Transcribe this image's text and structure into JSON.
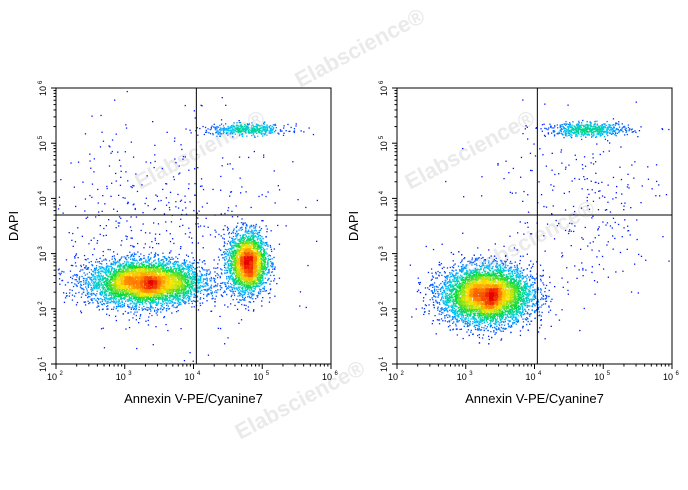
{
  "watermark": "Elabscience®",
  "chart_data": [
    {
      "type": "scatter",
      "panel": "left",
      "xlabel": "Annexin V-PE/Cyanine7",
      "ylabel": "DAPI",
      "xscale": "log",
      "yscale": "log",
      "xlim": [
        100,
        1000000
      ],
      "ylim": [
        10,
        1000000
      ],
      "x_ticks": [
        {
          "base": "10",
          "exp": "2"
        },
        {
          "base": "10",
          "exp": "3"
        },
        {
          "base": "10",
          "exp": "4"
        },
        {
          "base": "10",
          "exp": "5"
        },
        {
          "base": "10",
          "exp": "6"
        }
      ],
      "y_ticks": [
        {
          "base": "10",
          "exp": "1"
        },
        {
          "base": "10",
          "exp": "2"
        },
        {
          "base": "10",
          "exp": "3"
        },
        {
          "base": "10",
          "exp": "4"
        },
        {
          "base": "10",
          "exp": "5"
        },
        {
          "base": "10",
          "exp": "6"
        }
      ],
      "quadrant_gate": {
        "x": 11000,
        "y": 5000
      },
      "grid": false,
      "color_scale": "density (blue → green → yellow → red)",
      "populations": [
        {
          "x_center": 2000,
          "y_center": 300,
          "x_spread_log": 0.42,
          "y_spread_log": 0.2,
          "count": 5200,
          "density_peak": "red"
        },
        {
          "x_center": 60000,
          "y_center": 700,
          "x_spread_log": 0.14,
          "y_spread_log": 0.28,
          "count": 2800,
          "density_peak": "red"
        },
        {
          "x_center": 60000,
          "y_center": 180000,
          "x_spread_log": 0.3,
          "y_spread_log": 0.05,
          "count": 450,
          "density_peak": "blue"
        },
        {
          "x_center": 3000,
          "y_center": 3000,
          "x_spread_log": 0.9,
          "y_spread_log": 1.0,
          "count": 500,
          "density_peak": "blue"
        }
      ]
    },
    {
      "type": "scatter",
      "panel": "right",
      "xlabel": "Annexin V-PE/Cyanine7",
      "ylabel": "DAPI",
      "xscale": "log",
      "yscale": "log",
      "xlim": [
        100,
        1000000
      ],
      "ylim": [
        10,
        1000000
      ],
      "x_ticks": [
        {
          "base": "10",
          "exp": "2"
        },
        {
          "base": "10",
          "exp": "3"
        },
        {
          "base": "10",
          "exp": "4"
        },
        {
          "base": "10",
          "exp": "5"
        },
        {
          "base": "10",
          "exp": "6"
        }
      ],
      "y_ticks": [
        {
          "base": "10",
          "exp": "1"
        },
        {
          "base": "10",
          "exp": "2"
        },
        {
          "base": "10",
          "exp": "3"
        },
        {
          "base": "10",
          "exp": "4"
        },
        {
          "base": "10",
          "exp": "5"
        },
        {
          "base": "10",
          "exp": "6"
        }
      ],
      "quadrant_gate": {
        "x": 11000,
        "y": 5000
      },
      "grid": false,
      "color_scale": "density (blue → green → yellow → red)",
      "populations": [
        {
          "x_center": 2000,
          "y_center": 180,
          "x_spread_log": 0.33,
          "y_spread_log": 0.26,
          "count": 6200,
          "density_peak": "red"
        },
        {
          "x_center": 60000,
          "y_center": 180000,
          "x_spread_log": 0.3,
          "y_spread_log": 0.06,
          "count": 600,
          "density_peak": "blue"
        },
        {
          "x_center": 40000,
          "y_center": 8000,
          "x_spread_log": 0.7,
          "y_spread_log": 0.8,
          "count": 280,
          "density_peak": "blue"
        }
      ]
    }
  ]
}
